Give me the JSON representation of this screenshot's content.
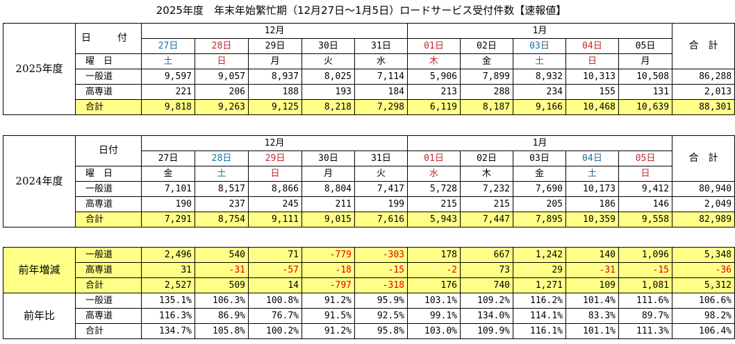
{
  "title": "2025年度　年末年始繁忙期（12月27日～1月5日）ロードサービス受付件数【速報値】",
  "labels": {
    "hizuke_2025": "日　付",
    "hizuke_2024": "日付",
    "youbi": "曜　日",
    "ippan": "一般道",
    "kousoku": "高専道",
    "goukei": "合計",
    "total_header": "合　計",
    "dec": "12月",
    "jan": "1月",
    "y2025": "2025年度",
    "y2024": "2024年度",
    "diff": "前年増減",
    "ratio": "前年比"
  },
  "colors": {
    "highlight": "#ffff88",
    "saturday": "#1a6fa0",
    "holiday": "#c0272d",
    "negative": "#e00000"
  },
  "y2025": {
    "dates": [
      {
        "d": "27日",
        "c": "blue"
      },
      {
        "d": "28日",
        "c": "red"
      },
      {
        "d": "29日",
        "c": ""
      },
      {
        "d": "30日",
        "c": ""
      },
      {
        "d": "31日",
        "c": ""
      },
      {
        "d": "01日",
        "c": "red"
      },
      {
        "d": "02日",
        "c": ""
      },
      {
        "d": "03日",
        "c": "blue"
      },
      {
        "d": "04日",
        "c": "red"
      },
      {
        "d": "05日",
        "c": ""
      }
    ],
    "days": [
      {
        "d": "土",
        "c": "blue"
      },
      {
        "d": "日",
        "c": "red"
      },
      {
        "d": "月",
        "c": ""
      },
      {
        "d": "火",
        "c": ""
      },
      {
        "d": "水",
        "c": ""
      },
      {
        "d": "木",
        "c": "red"
      },
      {
        "d": "金",
        "c": ""
      },
      {
        "d": "土",
        "c": "blue"
      },
      {
        "d": "日",
        "c": "red"
      },
      {
        "d": "月",
        "c": ""
      }
    ],
    "ippan": [
      "9,597",
      "9,057",
      "8,937",
      "8,025",
      "7,114",
      "5,906",
      "7,899",
      "8,932",
      "10,313",
      "10,508",
      "86,288"
    ],
    "kousoku": [
      "221",
      "206",
      "188",
      "193",
      "184",
      "213",
      "288",
      "234",
      "155",
      "131",
      "2,013"
    ],
    "goukei": [
      "9,818",
      "9,263",
      "9,125",
      "8,218",
      "7,298",
      "6,119",
      "8,187",
      "9,166",
      "10,468",
      "10,639",
      "88,301"
    ]
  },
  "y2024": {
    "dates": [
      {
        "d": "27日",
        "c": ""
      },
      {
        "d": "28日",
        "c": "blue"
      },
      {
        "d": "29日",
        "c": "red"
      },
      {
        "d": "30日",
        "c": ""
      },
      {
        "d": "31日",
        "c": ""
      },
      {
        "d": "01日",
        "c": "red"
      },
      {
        "d": "02日",
        "c": ""
      },
      {
        "d": "03日",
        "c": ""
      },
      {
        "d": "04日",
        "c": "blue"
      },
      {
        "d": "05日",
        "c": "red"
      }
    ],
    "days": [
      {
        "d": "金",
        "c": ""
      },
      {
        "d": "土",
        "c": "blue"
      },
      {
        "d": "日",
        "c": "red"
      },
      {
        "d": "月",
        "c": ""
      },
      {
        "d": "火",
        "c": ""
      },
      {
        "d": "水",
        "c": "red"
      },
      {
        "d": "木",
        "c": ""
      },
      {
        "d": "金",
        "c": ""
      },
      {
        "d": "土",
        "c": "blue"
      },
      {
        "d": "日",
        "c": "red"
      }
    ],
    "ippan": [
      "7,101",
      "8,517",
      "8,866",
      "8,804",
      "7,417",
      "5,728",
      "7,232",
      "7,690",
      "10,173",
      "9,412",
      "80,940"
    ],
    "kousoku": [
      "190",
      "237",
      "245",
      "211",
      "199",
      "215",
      "215",
      "205",
      "186",
      "146",
      "2,049"
    ],
    "goukei": [
      "7,291",
      "8,754",
      "9,111",
      "9,015",
      "7,616",
      "5,943",
      "7,447",
      "7,895",
      "10,359",
      "9,558",
      "82,989"
    ]
  },
  "diff": {
    "ippan": [
      "2,496",
      "540",
      "71",
      "-779",
      "-303",
      "178",
      "667",
      "1,242",
      "140",
      "1,096",
      "5,348"
    ],
    "kousoku": [
      "31",
      "-31",
      "-57",
      "-18",
      "-15",
      "-2",
      "73",
      "29",
      "-31",
      "-15",
      "-36"
    ],
    "goukei": [
      "2,527",
      "509",
      "14",
      "-797",
      "-318",
      "176",
      "740",
      "1,271",
      "109",
      "1,081",
      "5,312"
    ]
  },
  "ratio": {
    "ippan": [
      "135.1%",
      "106.3%",
      "100.8%",
      "91.2%",
      "95.9%",
      "103.1%",
      "109.2%",
      "116.2%",
      "101.4%",
      "111.6%",
      "106.6%"
    ],
    "kousoku": [
      "116.3%",
      "86.9%",
      "76.7%",
      "91.5%",
      "92.5%",
      "99.1%",
      "134.0%",
      "114.1%",
      "83.3%",
      "89.7%",
      "98.2%"
    ],
    "goukei": [
      "134.7%",
      "105.8%",
      "100.2%",
      "91.2%",
      "95.8%",
      "103.0%",
      "109.9%",
      "116.1%",
      "101.1%",
      "111.3%",
      "106.4%"
    ]
  }
}
